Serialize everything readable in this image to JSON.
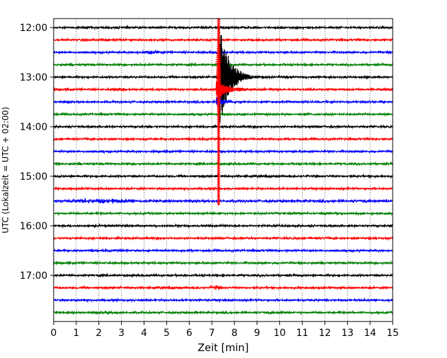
{
  "chart_data": {
    "type": "line",
    "subtype": "helicorder",
    "xlabel": "Zeit  [min]",
    "ylabel": "UTC (Lokalzeit = UTC + 02:00)",
    "xlim": [
      0,
      15
    ],
    "xticks": [
      0,
      1,
      2,
      3,
      4,
      5,
      6,
      7,
      8,
      9,
      10,
      11,
      12,
      13,
      14,
      15
    ],
    "x_tick_labels": [
      "0",
      "1",
      "2",
      "3",
      "4",
      "5",
      "6",
      "7",
      "8",
      "9",
      "10",
      "11",
      "12",
      "13",
      "14",
      "15"
    ],
    "y_tick_labels": [
      "12:00",
      "13:00",
      "14:00",
      "15:00",
      "16:00",
      "17:00"
    ],
    "grid": "vertical dotted at every minute",
    "trace_interval_min": 15,
    "trace_colors": [
      "#000000",
      "#ff0000",
      "#0000ff",
      "#008000"
    ],
    "traces": [
      {
        "start": "12:00",
        "color": "#000000",
        "noise": 1.0
      },
      {
        "start": "12:15",
        "color": "#ff0000",
        "noise": 1.0
      },
      {
        "start": "12:30",
        "color": "#0000ff",
        "noise": 1.0,
        "bursts": [
          {
            "from": 3.5,
            "to": 5.0,
            "amp": 1.8
          }
        ]
      },
      {
        "start": "12:45",
        "color": "#008000",
        "noise": 1.0
      },
      {
        "start": "13:00",
        "color": "#000000",
        "noise": 1.0,
        "event": {
          "t": 7.3,
          "amp": 90,
          "decay": 0.4
        }
      },
      {
        "start": "13:15",
        "color": "#ff0000",
        "noise": 1.0,
        "bursts": [
          {
            "from": 2.5,
            "to": 3.2,
            "amp": 2.0
          }
        ],
        "event": {
          "t": 7.2,
          "amp": 14,
          "decay": 0.5
        }
      },
      {
        "start": "13:30",
        "color": "#0000ff",
        "noise": 1.0,
        "event": {
          "t": 7.2,
          "amp": 9,
          "decay": 0.3
        }
      },
      {
        "start": "13:45",
        "color": "#008000",
        "noise": 1.0,
        "event": {
          "t": 7.3,
          "amp": 3,
          "decay": 0.2
        }
      },
      {
        "start": "14:00",
        "color": "#000000",
        "noise": 1.0
      },
      {
        "start": "14:15",
        "color": "#ff0000",
        "noise": 1.0
      },
      {
        "start": "14:30",
        "color": "#0000ff",
        "noise": 1.0
      },
      {
        "start": "14:45",
        "color": "#008000",
        "noise": 1.0
      },
      {
        "start": "15:00",
        "color": "#000000",
        "noise": 1.0
      },
      {
        "start": "15:15",
        "color": "#ff0000",
        "noise": 1.0
      },
      {
        "start": "15:30",
        "color": "#0000ff",
        "noise": 1.2,
        "bursts": [
          {
            "from": 0.6,
            "to": 3.6,
            "amp": 2.2
          }
        ]
      },
      {
        "start": "15:45",
        "color": "#008000",
        "noise": 1.0
      },
      {
        "start": "16:00",
        "color": "#000000",
        "noise": 1.0
      },
      {
        "start": "16:15",
        "color": "#ff0000",
        "noise": 1.0
      },
      {
        "start": "16:30",
        "color": "#0000ff",
        "noise": 1.0
      },
      {
        "start": "16:45",
        "color": "#008000",
        "noise": 1.0
      },
      {
        "start": "17:00",
        "color": "#000000",
        "noise": 1.0
      },
      {
        "start": "17:15",
        "color": "#ff0000",
        "noise": 1.0,
        "bursts": [
          {
            "from": 6.8,
            "to": 7.5,
            "amp": 2.0
          }
        ]
      },
      {
        "start": "17:30",
        "color": "#0000ff",
        "noise": 1.0
      },
      {
        "start": "17:45",
        "color": "#008000",
        "noise": 1.0,
        "bursts": [
          {
            "from": 2.0,
            "to": 3.0,
            "amp": 1.6
          }
        ]
      }
    ],
    "event": {
      "t": 7.3,
      "trace_start": "13:00",
      "color": "#ff0000",
      "note": "large seismic event spanning multiple traces"
    }
  }
}
